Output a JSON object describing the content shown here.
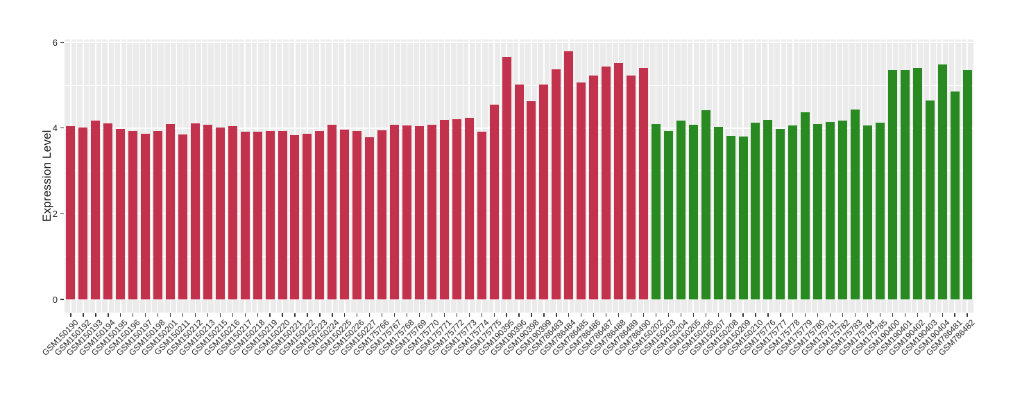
{
  "figure": {
    "background": "#FFFFFF",
    "panel_background": "#EBEBEB",
    "gridline_color": "#FFFFFF",
    "axis_text_color": "#222222",
    "tick_mark_color": "#333333"
  },
  "chart_data": {
    "type": "bar",
    "title": "",
    "xlabel": "",
    "ylabel": "Expression Level",
    "ylim": [
      0,
      6.07
    ],
    "yticks": [
      0,
      2,
      4,
      6
    ],
    "yticks_minor": [
      1,
      3,
      5
    ],
    "grid": "white major and minor gridlines on gray panel",
    "legend": "none",
    "x_label_angle_deg": 45,
    "bar_groups": [
      {
        "name": "group-red",
        "color": "#C2324C",
        "labels": [
          "GSM150190",
          "GSM150192",
          "GSM150193",
          "GSM150194",
          "GSM150195",
          "GSM150196",
          "GSM150197",
          "GSM150198",
          "GSM150201",
          "GSM150211",
          "GSM150212",
          "GSM150213",
          "GSM150215",
          "GSM150216",
          "GSM150217",
          "GSM150218",
          "GSM150219",
          "GSM150220",
          "GSM150221",
          "GSM150222",
          "GSM150223",
          "GSM150224",
          "GSM150225",
          "GSM150226",
          "GSM150227",
          "GSM175766",
          "GSM175767",
          "GSM175768",
          "GSM175769",
          "GSM175770",
          "GSM175771",
          "GSM175772",
          "GSM175773",
          "GSM175774",
          "GSM175775",
          "GSM190395",
          "GSM190396",
          "GSM190398",
          "GSM190399",
          "GSM786483",
          "GSM786484",
          "GSM786485",
          "GSM786486",
          "GSM786487",
          "GSM786488",
          "GSM786489",
          "GSM786490"
        ],
        "values": [
          4.05,
          4.01,
          4.17,
          4.11,
          3.98,
          3.94,
          3.87,
          3.94,
          4.1,
          3.85,
          4.11,
          4.08,
          4.01,
          4.05,
          3.91,
          3.91,
          3.93,
          3.93,
          3.84,
          3.87,
          3.93,
          4.07,
          3.96,
          3.93,
          3.78,
          3.95,
          4.08,
          4.06,
          4.05,
          4.07,
          4.19,
          4.21,
          4.24,
          3.92,
          4.55,
          5.67,
          5.01,
          4.63,
          5.02,
          5.37,
          5.79,
          5.06,
          5.23,
          5.44,
          5.51,
          5.22,
          5.4
        ]
      },
      {
        "name": "group-green",
        "color": "#298A21",
        "labels": [
          "GSM150202",
          "GSM150203",
          "GSM150204",
          "GSM150205",
          "GSM150206",
          "GSM150207",
          "GSM150208",
          "GSM150209",
          "GSM150210",
          "GSM175776",
          "GSM175777",
          "GSM175778",
          "GSM175779",
          "GSM175780",
          "GSM175781",
          "GSM175782",
          "GSM175783",
          "GSM175784",
          "GSM175785",
          "GSM190400",
          "GSM190401",
          "GSM190402",
          "GSM190403",
          "GSM190404",
          "GSM786481",
          "GSM786482"
        ],
        "values": [
          4.09,
          3.94,
          4.17,
          4.08,
          4.42,
          4.03,
          3.82,
          3.8,
          4.12,
          4.19,
          3.98,
          4.06,
          4.37,
          4.09,
          4.15,
          4.18,
          4.44,
          4.06,
          4.12,
          5.35,
          5.36,
          5.4,
          4.65,
          5.49,
          4.85,
          5.36
        ]
      }
    ]
  }
}
